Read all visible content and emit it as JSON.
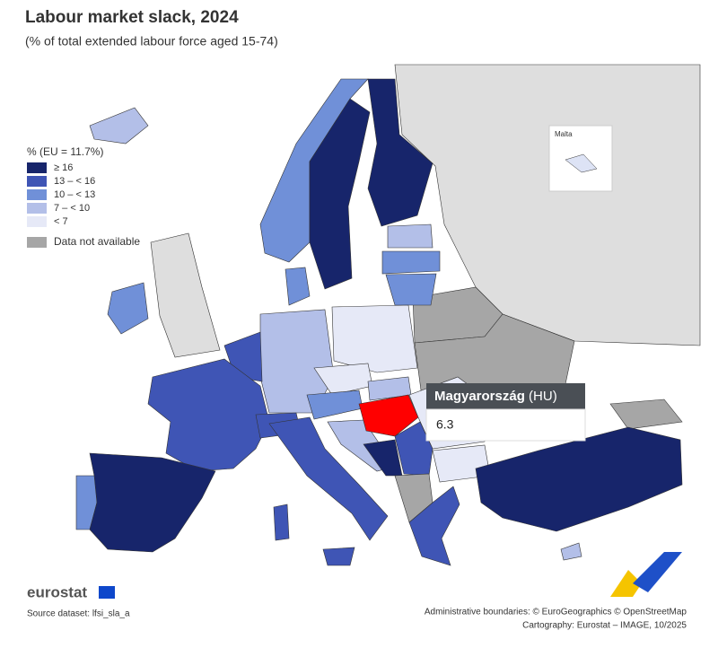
{
  "header": {
    "title": "Labour market slack, 2024",
    "subtitle": "(% of total extended labour force aged 15-74)"
  },
  "legend": {
    "title": "% (EU = 11.7%)",
    "items": [
      {
        "label": "≥ 16",
        "color": "#17256b"
      },
      {
        "label": "13 – < 16",
        "color": "#3f55b5"
      },
      {
        "label": "10 – < 13",
        "color": "#7090d8"
      },
      {
        "label": "7 – < 10",
        "color": "#b3bfe8"
      },
      {
        "label": "< 7",
        "color": "#e6e9f7"
      }
    ],
    "no_data": {
      "label": "Data not available",
      "color": "#a6a6a6"
    }
  },
  "inset": {
    "label": "Malta"
  },
  "tooltip": {
    "country": "Magyarország",
    "code": "(HU)",
    "value": 6.3
  },
  "footer": {
    "brand": "eurostat",
    "source": "Source dataset: lfsi_sla_a",
    "boundaries": "Administrative boundaries: © EuroGeographics © OpenStreetMap",
    "cartography": "Cartography: Eurostat – IMAGE, 10/2025"
  }
}
